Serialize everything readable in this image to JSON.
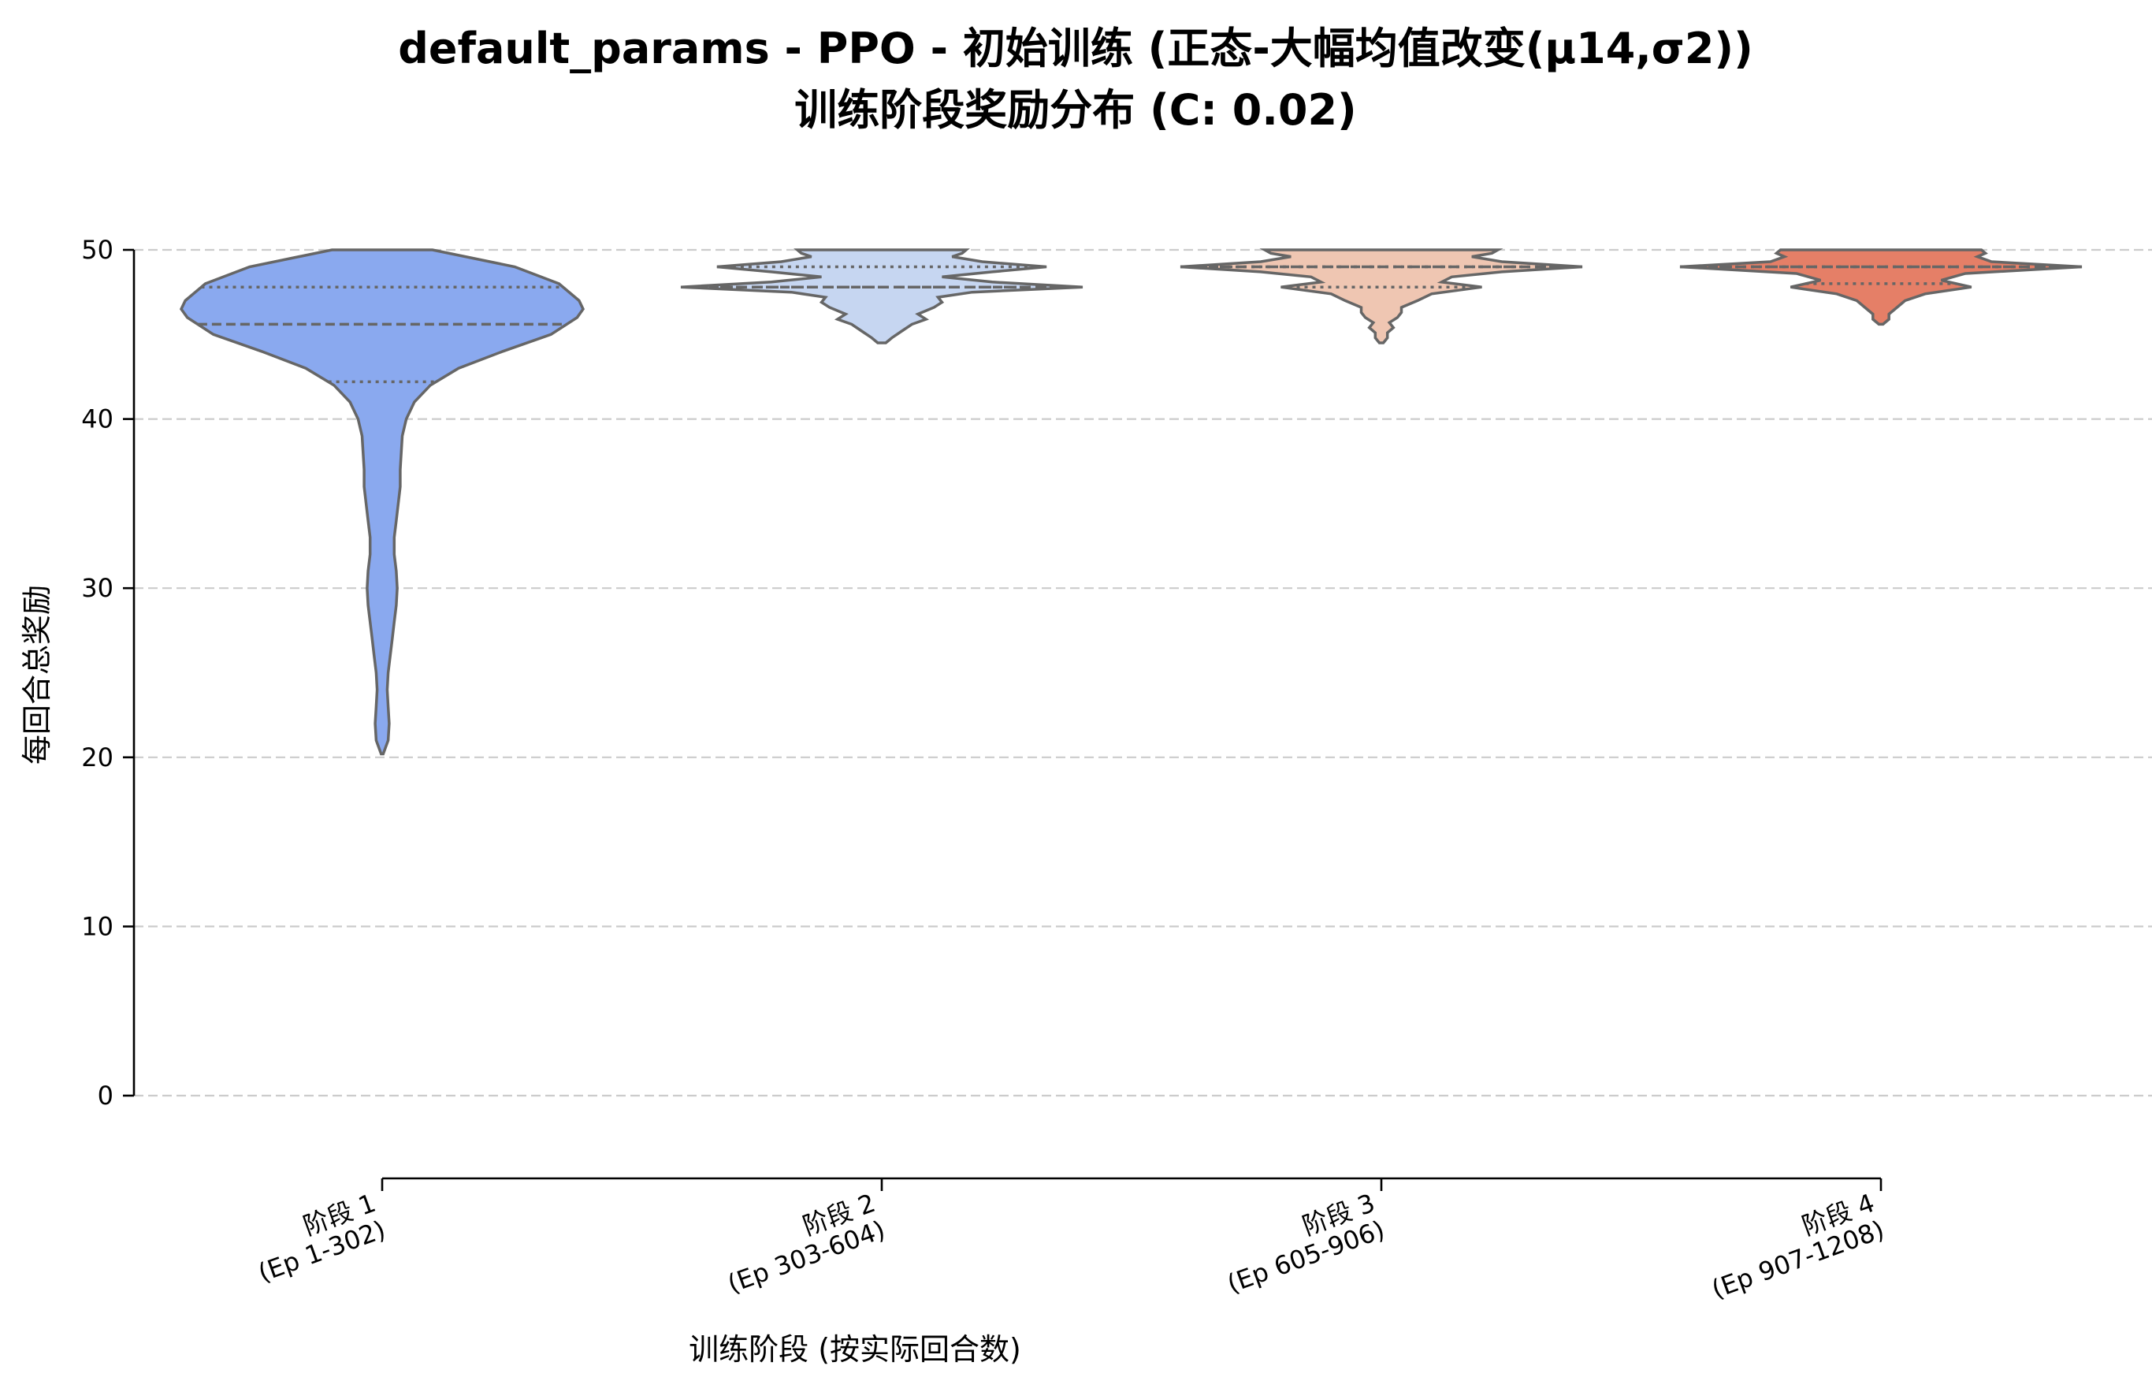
{
  "chart_data": {
    "type": "violin",
    "title": "default_params - PPO - 初始训练 (正态-大幅均值改变(μ14,σ2))",
    "subtitle": "训练阶段奖励分布 (C: 0.02)",
    "xlabel": "训练阶段 (按实际回合数)",
    "ylabel": "每回合总奖励",
    "ylim": [
      0,
      50
    ],
    "yticks": [
      "0",
      "10",
      "20",
      "30",
      "40",
      "50"
    ],
    "grid": "horizontal dashed",
    "categories": [
      {
        "line1": "阶段 1",
        "line2": "(Ep 1-302)"
      },
      {
        "line1": "阶段 2",
        "line2": "(Ep 303-604)"
      },
      {
        "line1": "阶段 3",
        "line2": "(Ep 605-906)"
      },
      {
        "line1": "阶段 4",
        "line2": "(Ep 907-1208)"
      }
    ],
    "series": [
      {
        "color": "#8aa9ef",
        "min": 20.2,
        "q1": 42.2,
        "median": 45.6,
        "q3": 47.8,
        "max": 50,
        "density": [
          [
            20.2,
            0.005
          ],
          [
            21,
            0.03
          ],
          [
            22,
            0.035
          ],
          [
            23,
            0.03
          ],
          [
            24,
            0.025
          ],
          [
            25,
            0.03
          ],
          [
            26,
            0.04
          ],
          [
            27,
            0.05
          ],
          [
            28,
            0.06
          ],
          [
            29,
            0.07
          ],
          [
            30,
            0.075
          ],
          [
            31,
            0.07
          ],
          [
            32,
            0.06
          ],
          [
            33,
            0.06
          ],
          [
            34,
            0.07
          ],
          [
            35,
            0.08
          ],
          [
            36,
            0.09
          ],
          [
            37,
            0.09
          ],
          [
            38,
            0.095
          ],
          [
            39,
            0.1
          ],
          [
            40,
            0.12
          ],
          [
            41,
            0.16
          ],
          [
            42,
            0.24
          ],
          [
            43,
            0.38
          ],
          [
            44,
            0.6
          ],
          [
            45,
            0.84
          ],
          [
            46,
            0.97
          ],
          [
            46.5,
            1.0
          ],
          [
            47,
            0.98
          ],
          [
            48,
            0.88
          ],
          [
            49,
            0.66
          ],
          [
            50,
            0.25
          ]
        ]
      },
      {
        "color": "#c6d6f1",
        "min": 44.5,
        "q1": 47.8,
        "median": 47.8,
        "q3": 49.0,
        "max": 50,
        "density": [
          [
            44.5,
            0.02
          ],
          [
            44.8,
            0.05
          ],
          [
            45.2,
            0.1
          ],
          [
            45.6,
            0.15
          ],
          [
            45.9,
            0.22
          ],
          [
            46.2,
            0.18
          ],
          [
            46.6,
            0.26
          ],
          [
            46.9,
            0.3
          ],
          [
            47.2,
            0.28
          ],
          [
            47.5,
            0.45
          ],
          [
            47.8,
            1.0
          ],
          [
            48.1,
            0.55
          ],
          [
            48.4,
            0.3
          ],
          [
            48.7,
            0.55
          ],
          [
            49.0,
            0.82
          ],
          [
            49.3,
            0.5
          ],
          [
            49.6,
            0.35
          ],
          [
            49.8,
            0.4
          ],
          [
            50,
            0.42
          ]
        ]
      },
      {
        "color": "#efc6b2",
        "min": 44.5,
        "q1": 47.8,
        "median": 49.0,
        "q3": 49.0,
        "max": 50,
        "density": [
          [
            44.5,
            0.01
          ],
          [
            44.8,
            0.03
          ],
          [
            45.1,
            0.03
          ],
          [
            45.4,
            0.06
          ],
          [
            45.7,
            0.04
          ],
          [
            46.0,
            0.08
          ],
          [
            46.3,
            0.1
          ],
          [
            46.6,
            0.1
          ],
          [
            47.0,
            0.18
          ],
          [
            47.4,
            0.25
          ],
          [
            47.8,
            0.5
          ],
          [
            48.1,
            0.3
          ],
          [
            48.4,
            0.35
          ],
          [
            48.7,
            0.6
          ],
          [
            49.0,
            1.0
          ],
          [
            49.3,
            0.6
          ],
          [
            49.6,
            0.45
          ],
          [
            49.8,
            0.55
          ],
          [
            50,
            0.58
          ]
        ]
      },
      {
        "color": "#e57f67",
        "min": 45.6,
        "q1": 48.0,
        "median": 49.0,
        "q3": 49.0,
        "max": 50,
        "density": [
          [
            45.6,
            0.01
          ],
          [
            45.9,
            0.04
          ],
          [
            46.2,
            0.04
          ],
          [
            46.6,
            0.08
          ],
          [
            47.0,
            0.12
          ],
          [
            47.4,
            0.22
          ],
          [
            47.8,
            0.45
          ],
          [
            48.2,
            0.3
          ],
          [
            48.6,
            0.42
          ],
          [
            49.0,
            1.0
          ],
          [
            49.3,
            0.55
          ],
          [
            49.6,
            0.48
          ],
          [
            49.8,
            0.52
          ],
          [
            50,
            0.5
          ]
        ]
      }
    ]
  }
}
